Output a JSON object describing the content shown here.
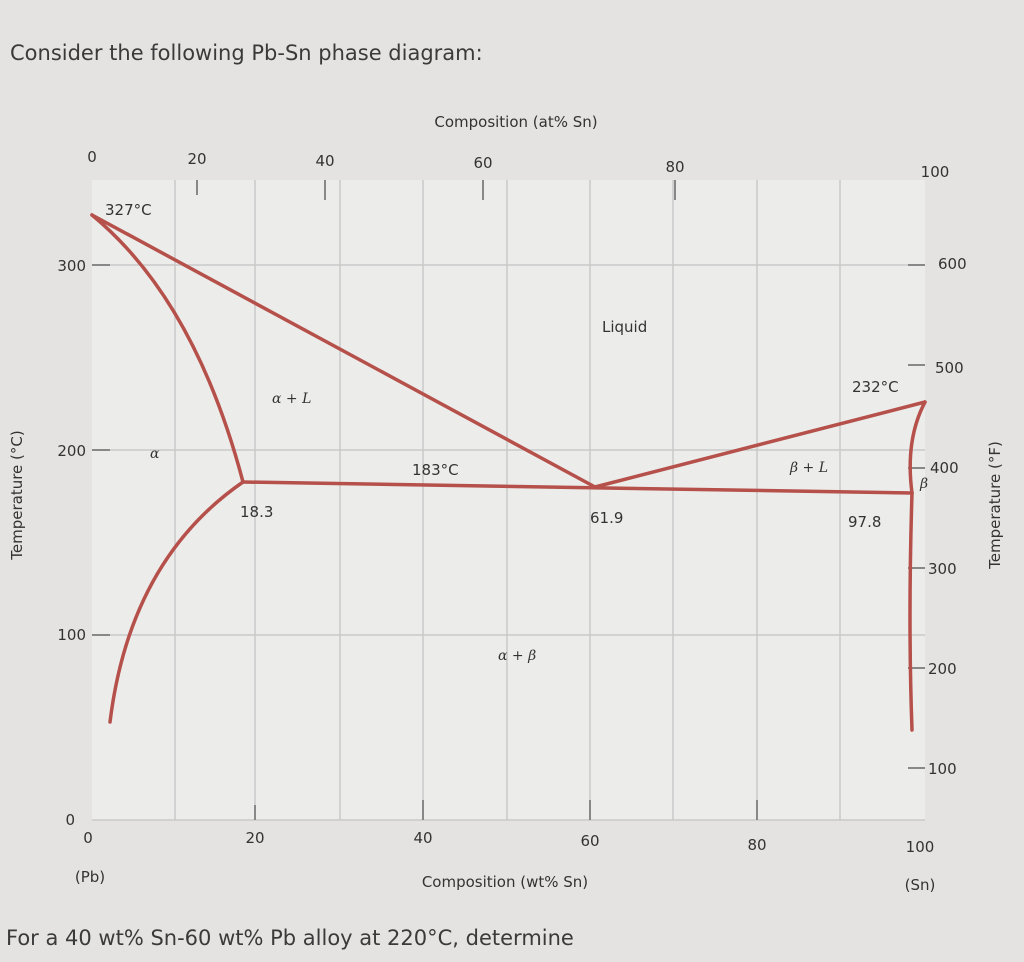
{
  "question": "Consider the following Pb-Sn phase diagram:",
  "prompt": "For a 40 wt% Sn-60 wt% Pb alloy at 220°C, determine",
  "diagram": {
    "top_axis_title": "Composition (at% Sn)",
    "bottom_axis_title": "Composition (wt% Sn)",
    "left_axis_title": "Temperature (°C)",
    "right_axis_title": "Temperature (°F)",
    "top_ticks": [
      "0",
      "20",
      "40",
      "60",
      "80",
      "100"
    ],
    "bottom_ticks": [
      "0",
      "20",
      "40",
      "60",
      "80",
      "100"
    ],
    "left_ticks": [
      "0",
      "100",
      "200",
      "300"
    ],
    "right_ticks": [
      "100",
      "200",
      "300",
      "400",
      "500",
      "600"
    ],
    "left_end_label": "(Pb)",
    "right_end_label": "(Sn)",
    "annotations": [
      "327°C",
      "232°C",
      "183°C",
      "18.3",
      "61.9",
      "97.8"
    ],
    "regions": [
      "Liquid",
      "α + L",
      "β + L",
      "α + β",
      "α",
      "β"
    ]
  }
}
